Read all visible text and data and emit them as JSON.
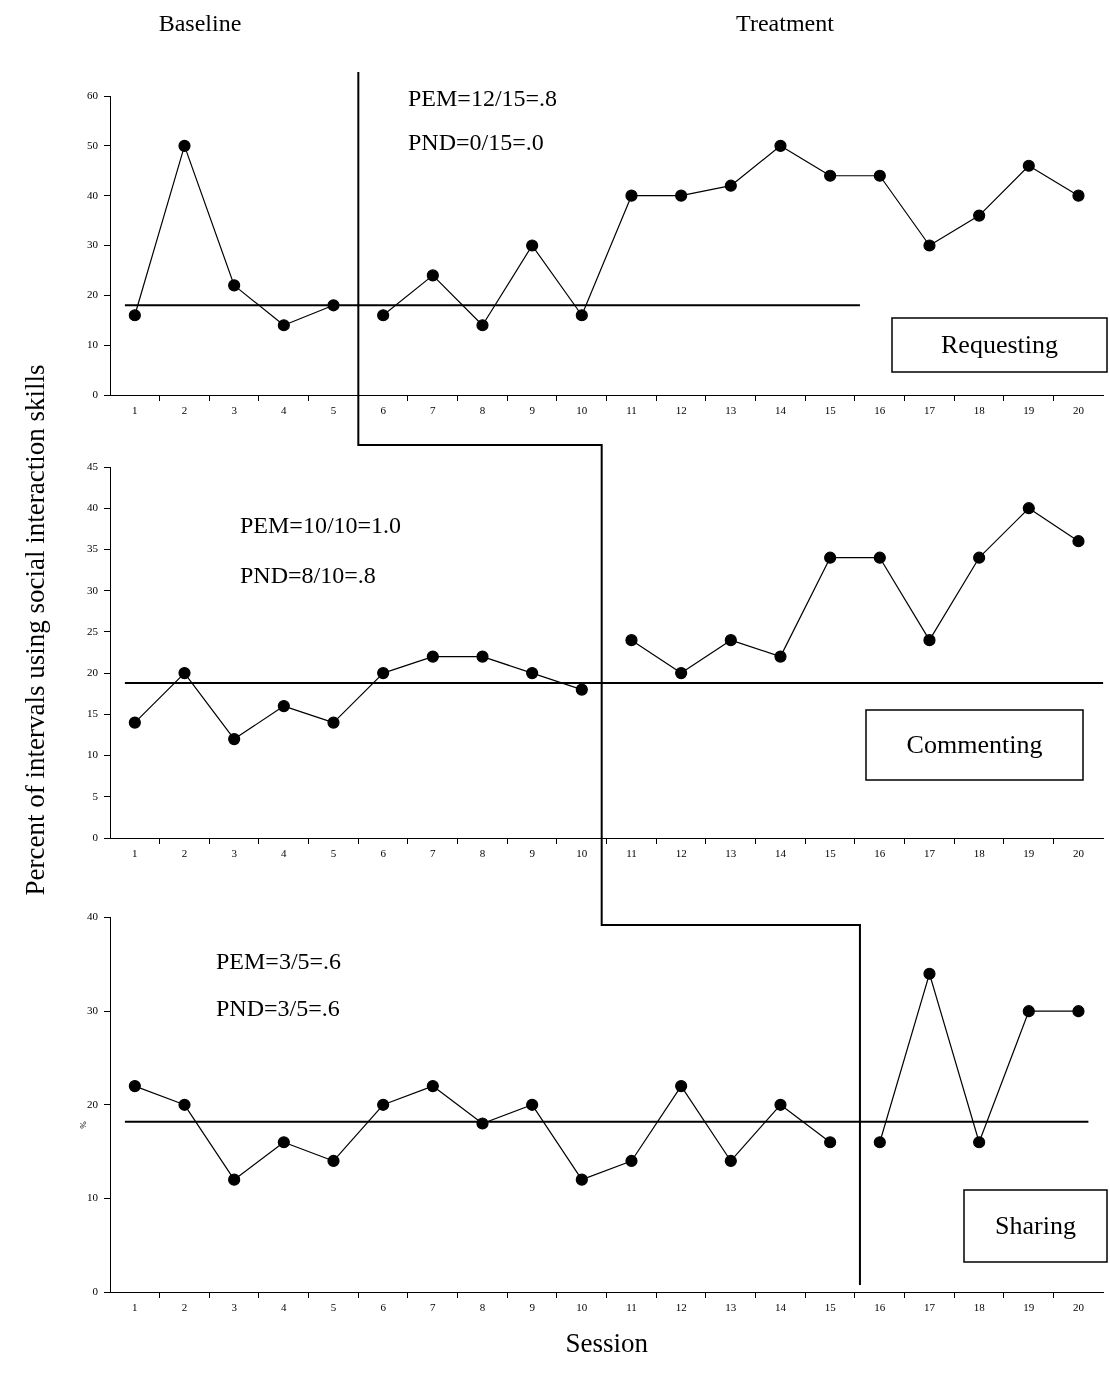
{
  "chart_data": [
    {
      "type": "line",
      "title": "Requesting",
      "annotations": [
        "Baseline",
        "Treatment",
        "PEM=12/15=.8",
        "PND=0/15=.0"
      ],
      "marker": "circle",
      "legend": false,
      "grid": false,
      "xlim": [
        0.5,
        20.5
      ],
      "xticks": [
        1,
        {
          "value": 1.5,
          "label": null
        },
        2,
        {
          "value": 2.5,
          "label": null
        },
        3,
        {
          "value": 3.5,
          "label": null
        },
        4,
        {
          "value": 4.5,
          "label": null
        },
        5,
        {
          "value": 5.5,
          "label": null
        },
        6,
        {
          "value": 6.5,
          "label": null
        },
        7,
        {
          "value": 7.5,
          "label": null
        },
        8,
        {
          "value": 8.5,
          "label": null
        },
        9,
        {
          "value": 9.5,
          "label": null
        },
        10,
        {
          "value": 10.5,
          "label": null
        },
        11,
        {
          "value": 11.5,
          "label": null
        },
        12,
        {
          "value": 12.5,
          "label": null
        },
        13,
        {
          "value": 13.5,
          "label": null
        },
        14,
        {
          "value": 14.5,
          "label": null
        },
        15,
        {
          "value": 15.5,
          "label": null
        },
        16,
        {
          "value": 16.5,
          "label": null
        },
        17,
        {
          "value": 17.5,
          "label": null
        },
        18,
        {
          "value": 18.5,
          "label": null
        },
        19,
        {
          "value": 19.5,
          "label": null
        },
        20
      ],
      "ylim": [
        0,
        60
      ],
      "yticks": [
        0,
        10,
        20,
        30,
        40,
        50,
        60
      ],
      "series": [
        {
          "color": "#000000",
          "x": [
            1,
            2,
            3,
            4,
            5
          ],
          "values": [
            16,
            50,
            22,
            14,
            18
          ]
        },
        {
          "color": "#000000",
          "x": [
            6,
            7,
            8,
            9,
            10,
            11,
            12,
            13,
            14,
            15,
            16,
            17,
            18,
            19,
            20
          ],
          "values": [
            16,
            24,
            14,
            30,
            16,
            40,
            40,
            42,
            50,
            44,
            44,
            30,
            36,
            46,
            40
          ]
        },
        {
          "marker": "none",
          "color": "#000000",
          "x": [
            0.8,
            15.6
          ],
          "values": [
            18,
            18
          ]
        }
      ],
      "ref_lines": [
        {
          "axis": "x",
          "value": 5.5
        }
      ]
    },
    {
      "type": "line",
      "title": "Commenting",
      "ylabel": "Percent of intervals using social interaction skills",
      "annotations": [
        "PEM=10/10=1.0",
        "PND=8/10=.8"
      ],
      "marker": "circle",
      "legend": false,
      "grid": false,
      "xlim": [
        0.5,
        20.5
      ],
      "xticks": [
        1,
        {
          "value": 1.5,
          "label": null
        },
        2,
        {
          "value": 2.5,
          "label": null
        },
        3,
        {
          "value": 3.5,
          "label": null
        },
        4,
        {
          "value": 4.5,
          "label": null
        },
        5,
        {
          "value": 5.5,
          "label": null
        },
        6,
        {
          "value": 6.5,
          "label": null
        },
        7,
        {
          "value": 7.5,
          "label": null
        },
        8,
        {
          "value": 8.5,
          "label": null
        },
        9,
        {
          "value": 9.5,
          "label": null
        },
        10,
        {
          "value": 10.5,
          "label": null
        },
        11,
        {
          "value": 11.5,
          "label": null
        },
        12,
        {
          "value": 12.5,
          "label": null
        },
        13,
        {
          "value": 13.5,
          "label": null
        },
        14,
        {
          "value": 14.5,
          "label": null
        },
        15,
        {
          "value": 15.5,
          "label": null
        },
        16,
        {
          "value": 16.5,
          "label": null
        },
        17,
        {
          "value": 17.5,
          "label": null
        },
        18,
        {
          "value": 18.5,
          "label": null
        },
        19,
        {
          "value": 19.5,
          "label": null
        },
        20
      ],
      "ylim": [
        0,
        45
      ],
      "yticks": [
        0,
        5,
        10,
        15,
        20,
        25,
        30,
        35,
        40,
        45
      ],
      "series": [
        {
          "color": "#000000",
          "x": [
            1,
            2,
            3,
            4,
            5,
            6,
            7,
            8,
            9,
            10
          ],
          "values": [
            14,
            20,
            12,
            16,
            14,
            20,
            22,
            22,
            20,
            18
          ]
        },
        {
          "color": "#000000",
          "x": [
            11,
            12,
            13,
            14,
            15,
            16,
            17,
            18,
            19,
            20
          ],
          "values": [
            24,
            20,
            24,
            22,
            34,
            34,
            24,
            34,
            40,
            36
          ]
        },
        {
          "marker": "none",
          "color": "#000000",
          "x": [
            0.8,
            20.5
          ],
          "values": [
            18.8,
            18.8
          ]
        }
      ],
      "ref_lines": [
        {
          "axis": "x",
          "value": 10.4
        }
      ]
    },
    {
      "type": "line",
      "title": "Sharing",
      "xlabel": "Session",
      "ylabel": "%",
      "annotations": [
        "PEM=3/5=.6",
        "PND=3/5=.6"
      ],
      "marker": "circle",
      "legend": false,
      "grid": false,
      "xlim": [
        0.5,
        20.5
      ],
      "xticks": [
        1,
        {
          "value": 1.5,
          "label": null
        },
        2,
        {
          "value": 2.5,
          "label": null
        },
        3,
        {
          "value": 3.5,
          "label": null
        },
        4,
        {
          "value": 4.5,
          "label": null
        },
        5,
        {
          "value": 5.5,
          "label": null
        },
        6,
        {
          "value": 6.5,
          "label": null
        },
        7,
        {
          "value": 7.5,
          "label": null
        },
        8,
        {
          "value": 8.5,
          "label": null
        },
        9,
        {
          "value": 9.5,
          "label": null
        },
        10,
        {
          "value": 10.5,
          "label": null
        },
        11,
        {
          "value": 11.5,
          "label": null
        },
        12,
        {
          "value": 12.5,
          "label": null
        },
        13,
        {
          "value": 13.5,
          "label": null
        },
        14,
        {
          "value": 14.5,
          "label": null
        },
        15,
        {
          "value": 15.5,
          "label": null
        },
        16,
        {
          "value": 16.5,
          "label": null
        },
        17,
        {
          "value": 17.5,
          "label": null
        },
        18,
        {
          "value": 18.5,
          "label": null
        },
        19,
        {
          "value": 19.5,
          "label": null
        },
        20
      ],
      "ylim": [
        0,
        40
      ],
      "yticks": [
        0,
        10,
        20,
        30,
        40
      ],
      "series": [
        {
          "color": "#000000",
          "x": [
            1,
            2,
            3,
            4,
            5,
            6,
            7,
            8,
            9,
            10,
            11,
            12,
            13,
            14,
            15
          ],
          "values": [
            22,
            20,
            12,
            16,
            14,
            20,
            22,
            18,
            20,
            12,
            14,
            22,
            14,
            20,
            16
          ]
        },
        {
          "color": "#000000",
          "x": [
            16,
            17,
            18,
            19,
            20
          ],
          "values": [
            16,
            34,
            16,
            30,
            30
          ]
        },
        {
          "marker": "none",
          "color": "#000000",
          "x": [
            0.8,
            20.2
          ],
          "values": [
            18.2,
            18.2
          ]
        }
      ],
      "ref_lines": [
        {
          "axis": "x",
          "value": 15.6
        }
      ]
    }
  ]
}
